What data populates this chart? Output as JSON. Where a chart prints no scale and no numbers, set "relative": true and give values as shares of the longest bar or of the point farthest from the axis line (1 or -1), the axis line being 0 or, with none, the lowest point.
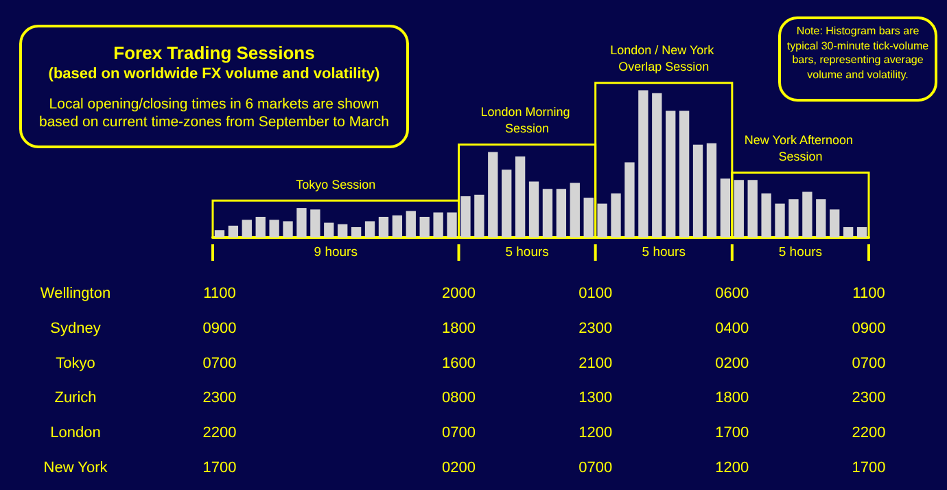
{
  "chart_data": {
    "type": "bar",
    "title": "Forex Trading Sessions",
    "subtitle": "(based on worldwide FX volume and volatility)",
    "relative": true,
    "grid": false,
    "color": "#d4d4d4",
    "categories": [
      null,
      null,
      null,
      null,
      null,
      null,
      null,
      null,
      null,
      null,
      null,
      null,
      null,
      null,
      null,
      null,
      null,
      null,
      null,
      null,
      null,
      null,
      null,
      null,
      null,
      null,
      null,
      null,
      null,
      null,
      null,
      null,
      null,
      null,
      null,
      null,
      null,
      null,
      null,
      null,
      null,
      null,
      null,
      null,
      null,
      null,
      null,
      null
    ],
    "values": [
      0.05,
      0.08,
      0.12,
      0.14,
      0.12,
      0.11,
      0.2,
      0.19,
      0.1,
      0.09,
      0.07,
      0.11,
      0.14,
      0.15,
      0.18,
      0.14,
      0.17,
      0.17,
      0.28,
      0.29,
      0.58,
      0.46,
      0.55,
      0.38,
      0.33,
      0.33,
      0.37,
      0.27,
      0.23,
      0.3,
      0.51,
      1,
      0.98,
      0.86,
      0.86,
      0.63,
      0.64,
      0.4,
      0.39,
      0.39,
      0.3,
      0.23,
      0.26,
      0.31,
      0.26,
      0.19,
      0.07,
      0.07
    ],
    "annotations": [
      "Tokyo Session",
      "London Morning Session",
      "London / New York Overlap Session",
      "New York Afternoon Session",
      "Local opening/closing times in 6 markets are shown based on current time-zones from September to March",
      "Note: Histogram bars are typical 30-minute tick-volume bars, representing average volume and volatility.",
      "9 hours",
      "5 hours",
      "5 hours",
      "5 hours",
      "Wellington",
      "1100",
      "2000",
      "0100",
      "0600",
      "1100",
      "Sydney",
      "0900",
      "1800",
      "2300",
      "0400",
      "0900",
      "Tokyo",
      "0700",
      "1600",
      "2100",
      "0200",
      "0700",
      "Zurich",
      "2300",
      "0800",
      "1300",
      "1800",
      "2300",
      "London",
      "2200",
      "0700",
      "1200",
      "1700",
      "2200",
      "New York",
      "1700",
      "0200",
      "0700",
      "1200",
      "1700"
    ]
  }
}
